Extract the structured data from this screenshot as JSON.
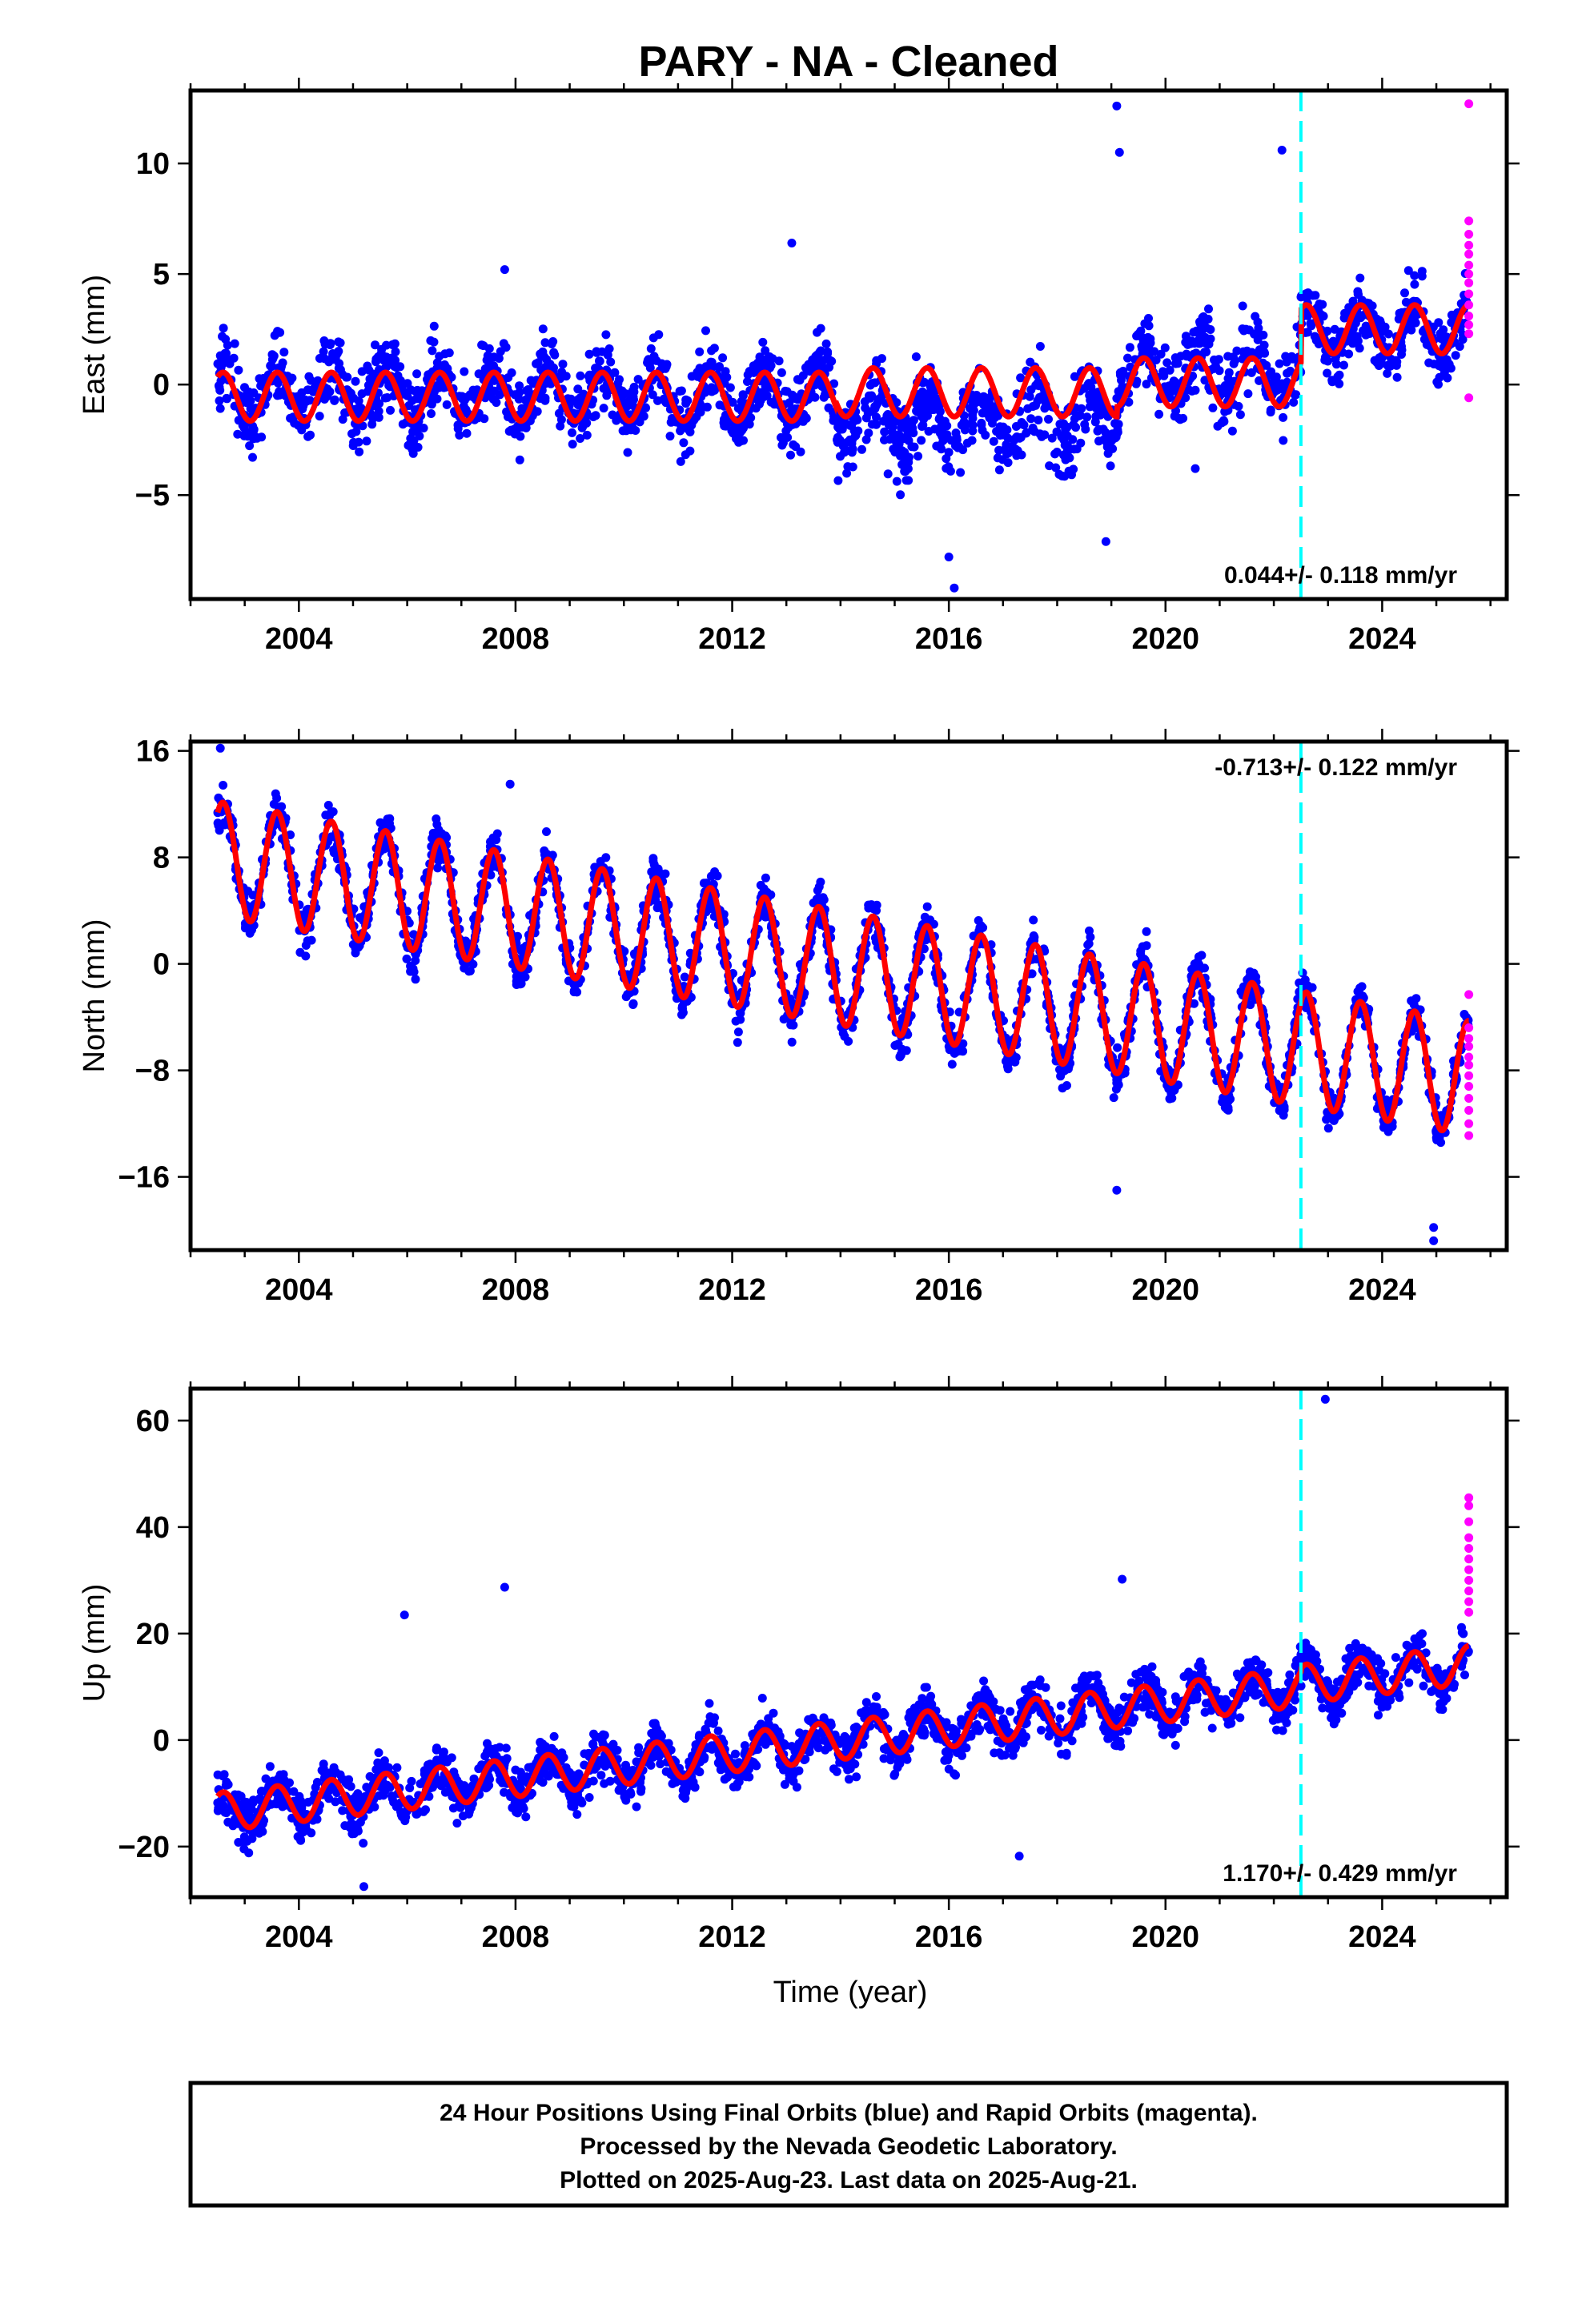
{
  "title": "PARY  - NA - Cleaned",
  "xlabel": "Time (year)",
  "caption": {
    "line1": "24 Hour Positions Using Final Orbits (blue) and Rapid Orbits (magenta).",
    "line2": "Processed by the Nevada Geodetic Laboratory.",
    "line3": "Plotted on 2025-Aug-23. Last data on 2025-Aug-21."
  },
  "colors": {
    "final_orbits": "#0000ff",
    "rapid_orbits": "#ff00ff",
    "model_fit": "#ff0000",
    "event_line": "#00ffff",
    "axes": "#000000"
  },
  "chart_data": [
    {
      "type": "scatter",
      "component": "east",
      "ylabel": "East (mm)",
      "xlim": [
        2002.0,
        2026.3
      ],
      "ylim": [
        -9.7,
        13.3
      ],
      "xticks": [
        2004,
        2008,
        2012,
        2016,
        2020,
        2024
      ],
      "yticks": [
        -5,
        0,
        5,
        10
      ],
      "ytick_labels": [
        "−5",
        "0",
        "5",
        "10"
      ],
      "rate_label": "0.044+/- 0.118 mm/yr",
      "rate_position": "bottom-right",
      "event_x": 2022.5,
      "rapid_points": [
        12.7,
        7.4,
        6.8,
        6.3,
        5.9,
        5.4,
        5.0,
        4.6,
        4.1,
        3.6,
        3.1,
        2.7,
        2.3,
        -0.6
      ],
      "rapid_x": 2025.6,
      "fit": {
        "start": 2002.5,
        "end": 2025.6,
        "offset_segments": [
          {
            "from": 2002.5,
            "value": -0.55
          },
          {
            "from": 2013.9,
            "value": -0.35
          },
          {
            "from": 2019.1,
            "value": 0.1
          },
          {
            "from": 2022.5,
            "value": 2.5
          }
        ],
        "amplitude": 1.1,
        "rate": 0.044
      },
      "cloud": [
        {
          "from": 2002.5,
          "to": 2013.9,
          "mean": -0.4,
          "spread": 1.5
        },
        {
          "from": 2013.9,
          "to": 2019.1,
          "mean": -1.6,
          "spread": 1.6
        },
        {
          "from": 2019.1,
          "to": 2022.5,
          "mean": 0.6,
          "spread": 1.6
        },
        {
          "from": 2022.5,
          "to": 2025.6,
          "mean": 2.4,
          "spread": 1.3
        }
      ],
      "outliers": [
        {
          "x": 2019.1,
          "y": 12.6
        },
        {
          "x": 2019.15,
          "y": 10.5
        },
        {
          "x": 2022.15,
          "y": 10.6
        },
        {
          "x": 2013.1,
          "y": 6.4
        },
        {
          "x": 2007.8,
          "y": 5.2
        },
        {
          "x": 2016.1,
          "y": -9.2
        },
        {
          "x": 2016.0,
          "y": -7.8
        },
        {
          "x": 2018.9,
          "y": -7.1
        },
        {
          "x": 2020.55,
          "y": -3.8
        }
      ]
    },
    {
      "type": "scatter",
      "component": "north",
      "ylabel": "North (mm)",
      "xlim": [
        2002.0,
        2026.3
      ],
      "ylim": [
        -21.5,
        16.7
      ],
      "xticks": [
        2004,
        2008,
        2012,
        2016,
        2020,
        2024
      ],
      "yticks": [
        -16,
        -8,
        0,
        8,
        16
      ],
      "ytick_labels": [
        "−16",
        "−8",
        "0",
        "8",
        "16"
      ],
      "rate_label": "-0.713+/- 0.122 mm/yr",
      "rate_position": "top-right",
      "event_x": 2022.5,
      "rapid_points": [
        -2.3,
        -4.8,
        -5.6,
        -6.2,
        -7.0,
        -7.6,
        -8.4,
        -9.2,
        -10.1,
        -11.0,
        -12.0,
        -12.9
      ],
      "rapid_x": 2025.6,
      "fit": {
        "start": 2002.5,
        "end": 2025.6,
        "offset_segments": [
          {
            "from": 2002.5,
            "value": 7.9
          }
        ],
        "amplitude": 4.3,
        "rate": -0.713
      },
      "cloud": [
        {
          "from": 2002.5,
          "to": 2025.6,
          "mean_start": 7.9,
          "rate": -0.713,
          "spread": 1.6,
          "amplitude": 4.3
        }
      ],
      "outliers": [
        {
          "x": 2002.55,
          "y": 16.2
        },
        {
          "x": 2007.9,
          "y": 13.5
        },
        {
          "x": 2019.1,
          "y": -17.0
        },
        {
          "x": 2024.95,
          "y": -19.8
        },
        {
          "x": 2024.95,
          "y": -20.8
        },
        {
          "x": 2012.1,
          "y": -5.9
        }
      ]
    },
    {
      "type": "scatter",
      "component": "up",
      "ylabel": "Up (mm)",
      "xlim": [
        2002.0,
        2026.3
      ],
      "ylim": [
        -29.5,
        66.0
      ],
      "xticks": [
        2004,
        2008,
        2012,
        2016,
        2020,
        2024
      ],
      "yticks": [
        -20,
        0,
        20,
        40,
        60
      ],
      "ytick_labels": [
        "−20",
        "0",
        "20",
        "40",
        "60"
      ],
      "rate_label": "1.170+/- 0.429 mm/yr",
      "rate_position": "bottom-right",
      "event_x": 2022.5,
      "rapid_points": [
        45.5,
        44.0,
        41.0,
        38.0,
        36.0,
        34.0,
        32.0,
        30.0,
        28.0,
        26.0,
        24.0
      ],
      "rapid_x": 2025.6,
      "fit": {
        "start": 2002.5,
        "end": 2025.6,
        "offset_segments": [
          {
            "from": 2002.5,
            "value": -13.5
          },
          {
            "from": 2022.5,
            "value": 10.5
          }
        ],
        "amplitude": 3.6,
        "rate": 1.17
      },
      "cloud": [
        {
          "from": 2002.5,
          "to": 2022.5,
          "mean_start": -13.5,
          "rate": 1.17,
          "spread": 4.2,
          "amplitude": 3.6
        },
        {
          "from": 2022.5,
          "to": 2025.6,
          "mean_start": 10.5,
          "rate": 1.17,
          "spread": 4.0,
          "amplitude": 3.6
        }
      ],
      "outliers": [
        {
          "x": 2022.95,
          "y": 64.0
        },
        {
          "x": 2007.8,
          "y": 28.7
        },
        {
          "x": 2019.2,
          "y": 30.2
        },
        {
          "x": 2005.95,
          "y": 23.5
        },
        {
          "x": 2017.3,
          "y": -21.8
        },
        {
          "x": 2005.2,
          "y": -27.5
        }
      ]
    }
  ]
}
